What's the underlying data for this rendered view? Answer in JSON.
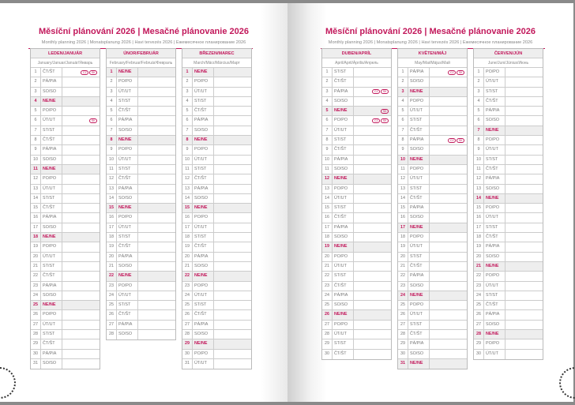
{
  "header": {
    "title": "Měsíční plánování 2026 | Mesačné plánovanie 2026",
    "subtitle": "Monthly planning 2026 | Monatsplanung 2026 | Havi tervezés 2026 | Ежемесячное планирование 2026"
  },
  "colors": {
    "accent": "#c2185b"
  },
  "sunday_label": "NE/NE",
  "badges": {
    "cz": "CZ",
    "sk": "SK"
  },
  "months": [
    {
      "name": "LEDEN/JANUÁR",
      "sub": "January/Januar/Január/Январь",
      "days": [
        "ČT/ŠT",
        "PÁ/PIA",
        "SO/SO",
        "NE/NE",
        "PO/PO",
        "ÚT/UT",
        "ST/ST",
        "ČT/ŠT",
        "PÁ/PIA",
        "SO/SO",
        "NE/NE",
        "PO/PO",
        "ÚT/UT",
        "ST/ST",
        "ČT/ŠT",
        "PÁ/PIA",
        "SO/SO",
        "NE/NE",
        "PO/PO",
        "ÚT/UT",
        "ST/ST",
        "ČT/ŠT",
        "PÁ/PIA",
        "SO/SO",
        "NE/NE",
        "PO/PO",
        "ÚT/UT",
        "ST/ST",
        "ČT/ŠT",
        "PÁ/PIA",
        "SO/SO"
      ],
      "holidays": {
        "1": [
          "CZ",
          "SK"
        ],
        "6": [
          "SK"
        ]
      }
    },
    {
      "name": "ÚNOR/FEBRUÁR",
      "sub": "February/Februar/Február/Февраль",
      "days": [
        "NE/NE",
        "PO/PO",
        "ÚT/UT",
        "ST/ST",
        "ČT/ŠT",
        "PÁ/PIA",
        "SO/SO",
        "NE/NE",
        "PO/PO",
        "ÚT/UT",
        "ST/ST",
        "ČT/ŠT",
        "PÁ/PIA",
        "SO/SO",
        "NE/NE",
        "PO/PO",
        "ÚT/UT",
        "ST/ST",
        "ČT/ŠT",
        "PÁ/PIA",
        "SO/SO",
        "NE/NE",
        "PO/PO",
        "ÚT/UT",
        "ST/ST",
        "ČT/ŠT",
        "PÁ/PIA",
        "SO/SO"
      ],
      "holidays": {}
    },
    {
      "name": "BŘEZEN/MAREC",
      "sub": "March/März/Március/Март",
      "days": [
        "NE/NE",
        "PO/PO",
        "ÚT/UT",
        "ST/ST",
        "ČT/ŠT",
        "PÁ/PIA",
        "SO/SO",
        "NE/NE",
        "PO/PO",
        "ÚT/UT",
        "ST/ST",
        "ČT/ŠT",
        "PÁ/PIA",
        "SO/SO",
        "NE/NE",
        "PO/PO",
        "ÚT/UT",
        "ST/ST",
        "ČT/ŠT",
        "PÁ/PIA",
        "SO/SO",
        "NE/NE",
        "PO/PO",
        "ÚT/UT",
        "ST/ST",
        "ČT/ŠT",
        "PÁ/PIA",
        "SO/SO",
        "NE/NE",
        "PO/PO",
        "ÚT/UT"
      ],
      "holidays": {}
    },
    {
      "name": "DUBEN/APRÍL",
      "sub": "April/April/Április/Апрель",
      "days": [
        "ST/ST",
        "ČT/ŠT",
        "PÁ/PIA",
        "SO/SO",
        "NE/NE",
        "PO/PO",
        "ÚT/UT",
        "ST/ST",
        "ČT/ŠT",
        "PÁ/PIA",
        "SO/SO",
        "NE/NE",
        "PO/PO",
        "ÚT/UT",
        "ST/ST",
        "ČT/ŠT",
        "PÁ/PIA",
        "SO/SO",
        "NE/NE",
        "PO/PO",
        "ÚT/UT",
        "ST/ST",
        "ČT/ŠT",
        "PÁ/PIA",
        "SO/SO",
        "NE/NE",
        "PO/PO",
        "ÚT/UT",
        "ST/ST",
        "ČT/ŠT"
      ],
      "holidays": {
        "3": [
          "CZ",
          "SK"
        ],
        "5": [
          "SK"
        ],
        "6": [
          "CZ",
          "SK"
        ]
      }
    },
    {
      "name": "KVĚTEN/MÁJ",
      "sub": "May/Mai/Május/Май",
      "days": [
        "PÁ/PIA",
        "SO/SO",
        "NE/NE",
        "PO/PO",
        "ÚT/UT",
        "ST/ST",
        "ČT/ŠT",
        "PÁ/PIA",
        "SO/SO",
        "NE/NE",
        "PO/PO",
        "ÚT/UT",
        "ST/ST",
        "ČT/ŠT",
        "PÁ/PIA",
        "SO/SO",
        "NE/NE",
        "PO/PO",
        "ÚT/UT",
        "ST/ST",
        "ČT/ŠT",
        "PÁ/PIA",
        "SO/SO",
        "NE/NE",
        "PO/PO",
        "ÚT/UT",
        "ST/ST",
        "ČT/ŠT",
        "PÁ/PIA",
        "SO/SO",
        "NE/NE"
      ],
      "holidays": {
        "1": [
          "CZ",
          "SK"
        ],
        "8": [
          "CZ",
          "SK"
        ]
      }
    },
    {
      "name": "ČERVEN/JÚN",
      "sub": "June/Juni/Június/Июнь",
      "days": [
        "PO/PO",
        "ÚT/UT",
        "ST/ST",
        "ČT/ŠT",
        "PÁ/PIA",
        "SO/SO",
        "NE/NE",
        "PO/PO",
        "ÚT/UT",
        "ST/ST",
        "ČT/ŠT",
        "PÁ/PIA",
        "SO/SO",
        "NE/NE",
        "PO/PO",
        "ÚT/UT",
        "ST/ST",
        "ČT/ŠT",
        "PÁ/PIA",
        "SO/SO",
        "NE/NE",
        "PO/PO",
        "ÚT/UT",
        "ST/ST",
        "ČT/ŠT",
        "PÁ/PIA",
        "SO/SO",
        "NE/NE",
        "PO/PO",
        "ÚT/UT"
      ],
      "holidays": {}
    }
  ]
}
